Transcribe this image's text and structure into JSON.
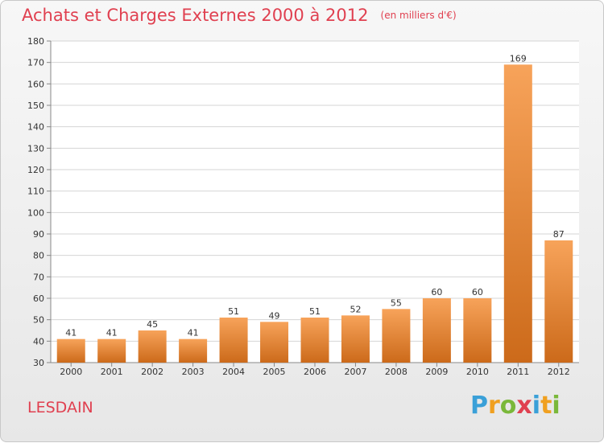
{
  "title": "Achats et Charges Externes 2000 à 2012",
  "subtitle": "(en milliers d'€)",
  "place": "LESDAIN",
  "logo": {
    "text": "Proxiti",
    "letters": [
      {
        "ch": "P",
        "color": "#3aa0d8"
      },
      {
        "ch": "r",
        "color": "#f0a020"
      },
      {
        "ch": "o",
        "color": "#7ab83a"
      },
      {
        "ch": "x",
        "color": "#e04050"
      },
      {
        "ch": "i",
        "color": "#3aa0d8"
      },
      {
        "ch": "t",
        "color": "#f0a020"
      },
      {
        "ch": "i",
        "color": "#7ab83a"
      }
    ]
  },
  "colors": {
    "bar_light": "#f7a35a",
    "bar_dark": "#cc6a1a",
    "title": "#e04050",
    "grid": "#d4d4d4"
  },
  "chart_data": {
    "type": "bar",
    "categories": [
      "2000",
      "2001",
      "2002",
      "2003",
      "2004",
      "2005",
      "2006",
      "2007",
      "2008",
      "2009",
      "2010",
      "2011",
      "2012"
    ],
    "values": [
      41,
      41,
      45,
      41,
      51,
      49,
      51,
      52,
      55,
      60,
      60,
      169,
      87
    ],
    "ylim": [
      30,
      180
    ],
    "yticks": [
      30,
      40,
      50,
      60,
      70,
      80,
      90,
      100,
      110,
      120,
      130,
      140,
      150,
      160,
      170,
      180
    ],
    "grid": true
  }
}
